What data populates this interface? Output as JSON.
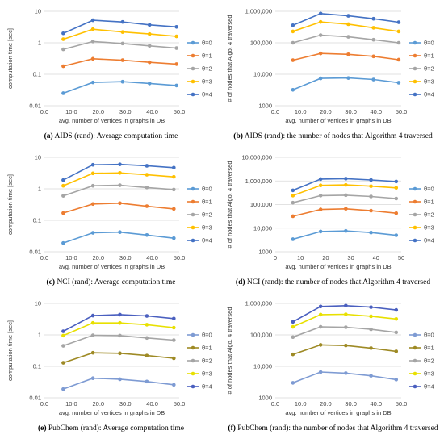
{
  "colors": {
    "scheme_ab": [
      "#5b9bd5",
      "#ed7d31",
      "#a5a5a5",
      "#ffc000",
      "#4472c4"
    ],
    "scheme_cd": [
      "#5b9bd5",
      "#ed7d31",
      "#a5a5a5",
      "#ffc000",
      "#4472c4"
    ],
    "scheme_ef": [
      "#7e9bd3",
      "#9e8a25",
      "#a5a5a5",
      "#e8e000",
      "#4a5fbf"
    ],
    "grid": "#d9d9d9"
  },
  "chart_data": [
    {
      "id": "a",
      "type": "line",
      "panel_col": 0,
      "panel_row": 0,
      "caption_letter": "(a)",
      "caption_text": " AIDS (rand): Average computation time",
      "ylabel": "computation time [sec]",
      "xlabel": "avg. number of vertices in graphs in DB",
      "yscale": "log",
      "ylim": [
        0.01,
        10
      ],
      "yticks": [
        0.01,
        0.1,
        1,
        10
      ],
      "ytick_labels": [
        "0.01",
        "0.1",
        "1",
        "10"
      ],
      "xlim": [
        0,
        50
      ],
      "xticks": [
        0,
        10,
        20,
        30,
        40,
        50
      ],
      "xtick_labels": [
        "0.0",
        "10.0",
        "20.0",
        "30.0",
        "40.0",
        "50.0"
      ],
      "x": [
        7,
        18,
        29,
        39,
        49
      ],
      "colors": "scheme_ab",
      "series": [
        {
          "name": "θ=0",
          "values": [
            0.025,
            0.055,
            0.058,
            0.051,
            0.044
          ]
        },
        {
          "name": "θ=1",
          "values": [
            0.18,
            0.31,
            0.28,
            0.24,
            0.21
          ]
        },
        {
          "name": "θ=2",
          "values": [
            0.62,
            1.1,
            0.95,
            0.8,
            0.68
          ]
        },
        {
          "name": "θ=3",
          "values": [
            1.3,
            2.7,
            2.2,
            1.9,
            1.6
          ]
        },
        {
          "name": "θ=4",
          "values": [
            2.0,
            5.2,
            4.6,
            3.7,
            3.2
          ]
        }
      ]
    },
    {
      "id": "b",
      "type": "line",
      "panel_col": 1,
      "panel_row": 0,
      "caption_letter": "(b)",
      "caption_text": " AIDS (rand): the number of nodes that Algorithm 4 traversed",
      "ylabel": "# of nodes that Algo. 4 traversed",
      "xlabel": "avg. number of vertices in graphs in DB",
      "yscale": "log",
      "ylim": [
        1000,
        1000000
      ],
      "yticks": [
        1000,
        10000,
        100000,
        1000000
      ],
      "ytick_labels": [
        "1000",
        "10,000",
        "100,000",
        "1,000,000"
      ],
      "xlim": [
        0,
        50
      ],
      "xticks": [
        0,
        10,
        20,
        30,
        40,
        50
      ],
      "xtick_labels": [
        "0.0",
        "10.0",
        "20.0",
        "30.0",
        "40.0",
        "50.0"
      ],
      "x": [
        7,
        18,
        29,
        39,
        49
      ],
      "colors": "scheme_ab",
      "series": [
        {
          "name": "θ=0",
          "values": [
            3200,
            7400,
            7600,
            6800,
            5400
          ]
        },
        {
          "name": "θ=1",
          "values": [
            28000,
            46000,
            43000,
            37000,
            29000
          ]
        },
        {
          "name": "θ=2",
          "values": [
            100000,
            175000,
            155000,
            125000,
            100000
          ]
        },
        {
          "name": "θ=3",
          "values": [
            230000,
            460000,
            390000,
            300000,
            230000
          ]
        },
        {
          "name": "θ=4",
          "values": [
            360000,
            850000,
            720000,
            580000,
            450000
          ]
        }
      ]
    },
    {
      "id": "c",
      "type": "line",
      "panel_col": 0,
      "panel_row": 1,
      "caption_letter": "(c)",
      "caption_text": " NCI (rand): Average computation time",
      "ylabel": "computation time [sec]",
      "xlabel": "avg. number of vertices in graphs in DB",
      "yscale": "log",
      "ylim": [
        0.01,
        10
      ],
      "yticks": [
        0.01,
        0.1,
        1,
        10
      ],
      "ytick_labels": [
        "0.01",
        "0.1",
        "1",
        "10"
      ],
      "xlim": [
        0,
        50
      ],
      "xticks": [
        0,
        10,
        20,
        30,
        40,
        50
      ],
      "xtick_labels": [
        "0.0",
        "10.0",
        "20.0",
        "30.0",
        "40.0",
        "50.0"
      ],
      "x": [
        7,
        18,
        28,
        38,
        48
      ],
      "colors": "scheme_cd",
      "series": [
        {
          "name": "θ=0",
          "values": [
            0.019,
            0.04,
            0.042,
            0.034,
            0.027
          ]
        },
        {
          "name": "θ=1",
          "values": [
            0.17,
            0.33,
            0.35,
            0.28,
            0.23
          ]
        },
        {
          "name": "θ=2",
          "values": [
            0.6,
            1.25,
            1.3,
            1.1,
            0.95
          ]
        },
        {
          "name": "θ=3",
          "values": [
            1.25,
            3.1,
            3.2,
            2.8,
            2.4
          ]
        },
        {
          "name": "θ=4",
          "values": [
            1.9,
            5.8,
            6.0,
            5.4,
            4.7
          ]
        }
      ]
    },
    {
      "id": "d",
      "type": "line",
      "panel_col": 1,
      "panel_row": 1,
      "caption_letter": "(d)",
      "caption_text": " NCI (rand): the number of nodes that Algorithm 4 traversed",
      "ylabel": "# of nodes that Algo. 4 traversed",
      "xlabel": "avg. number of vertices in graphs in DB",
      "yscale": "log",
      "ylim": [
        1000,
        10000000
      ],
      "yticks": [
        1000,
        10000,
        100000,
        1000000,
        10000000
      ],
      "ytick_labels": [
        "1000",
        "10,000",
        "100,000",
        "1,000,000",
        "10,000,000"
      ],
      "xlim": [
        0,
        50
      ],
      "xticks": [
        0,
        10,
        20,
        30,
        40,
        50
      ],
      "xtick_labels": [
        "0",
        "10",
        "20",
        "30",
        "40",
        "50"
      ],
      "x": [
        7,
        18,
        28,
        38,
        48
      ],
      "colors": "scheme_cd",
      "series": [
        {
          "name": "θ=0",
          "values": [
            3400,
            7200,
            7600,
            6500,
            5000
          ]
        },
        {
          "name": "θ=1",
          "values": [
            32000,
            62000,
            66000,
            55000,
            43000
          ]
        },
        {
          "name": "θ=2",
          "values": [
            120000,
            240000,
            250000,
            220000,
            180000
          ]
        },
        {
          "name": "θ=3",
          "values": [
            240000,
            650000,
            680000,
            600000,
            510000
          ]
        },
        {
          "name": "θ=4",
          "values": [
            400000,
            1200000,
            1250000,
            1100000,
            950000
          ]
        }
      ]
    },
    {
      "id": "e",
      "type": "line",
      "panel_col": 0,
      "panel_row": 2,
      "caption_letter": "(e)",
      "caption_text": " PubChem (rand): Average computation time",
      "ylabel": "computation time [sec]",
      "xlabel": "avg. number of vertices in graphs in DB",
      "yscale": "log",
      "ylim": [
        0.01,
        10
      ],
      "yticks": [
        0.01,
        0.1,
        1,
        10
      ],
      "ytick_labels": [
        "0.01",
        "0.1",
        "1",
        "10"
      ],
      "xlim": [
        0,
        50
      ],
      "xticks": [
        0,
        10,
        20,
        30,
        40,
        50
      ],
      "xtick_labels": [
        "0.0",
        "10.0",
        "20.0",
        "30.0",
        "40.0",
        "50.0"
      ],
      "x": [
        7,
        18,
        28,
        38,
        48
      ],
      "colors": "scheme_ef",
      "series": [
        {
          "name": "θ=0",
          "values": [
            0.019,
            0.042,
            0.039,
            0.033,
            0.026
          ]
        },
        {
          "name": "θ=1",
          "values": [
            0.13,
            0.27,
            0.26,
            0.22,
            0.18
          ]
        },
        {
          "name": "θ=2",
          "values": [
            0.45,
            0.97,
            0.95,
            0.8,
            0.68
          ]
        },
        {
          "name": "θ=3",
          "values": [
            0.95,
            2.4,
            2.4,
            2.1,
            1.7
          ]
        },
        {
          "name": "θ=4",
          "values": [
            1.3,
            4.1,
            4.4,
            4.0,
            3.3
          ]
        }
      ]
    },
    {
      "id": "f",
      "type": "line",
      "panel_col": 1,
      "panel_row": 2,
      "caption_letter": "(f)",
      "caption_text": " PubChem (rand): the number of nodes that Algorithm 4 traversed",
      "ylabel": "# of nodes that Algo. 4 traversed",
      "xlabel": "avg. number of vertices in graphs in DB",
      "yscale": "log",
      "ylim": [
        1000,
        1000000
      ],
      "yticks": [
        1000,
        10000,
        100000,
        1000000
      ],
      "ytick_labels": [
        "1000",
        "10,000",
        "100,000",
        "1,000,000"
      ],
      "xlim": [
        0,
        50
      ],
      "xticks": [
        0,
        10,
        20,
        30,
        40,
        50
      ],
      "xtick_labels": [
        "0.0",
        "10.0",
        "20.0",
        "30.0",
        "40.0",
        "50.0"
      ],
      "x": [
        7,
        18,
        28,
        38,
        48
      ],
      "colors": "scheme_ef",
      "series": [
        {
          "name": "θ=0",
          "values": [
            3000,
            6600,
            6100,
            5000,
            3800
          ]
        },
        {
          "name": "θ=1",
          "values": [
            24000,
            48000,
            46000,
            38000,
            30000
          ]
        },
        {
          "name": "θ=2",
          "values": [
            85000,
            180000,
            175000,
            150000,
            120000
          ]
        },
        {
          "name": "θ=3",
          "values": [
            180000,
            440000,
            450000,
            390000,
            320000
          ]
        },
        {
          "name": "θ=4",
          "values": [
            260000,
            800000,
            850000,
            760000,
            620000
          ]
        }
      ]
    }
  ]
}
